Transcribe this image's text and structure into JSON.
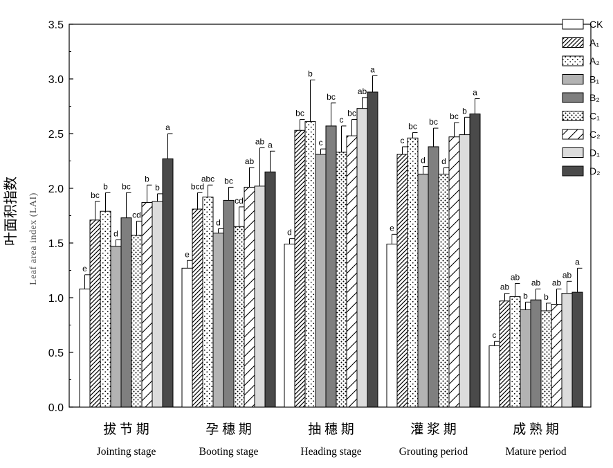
{
  "chart_data": {
    "type": "bar",
    "ylabel_cn": "叶面积指数",
    "ylabel_en": "Leaf area index (LAI)",
    "ylim": [
      0,
      3.5
    ],
    "yticks": [
      "0.0",
      "0.5",
      "1.0",
      "1.5",
      "2.0",
      "2.5",
      "3.0",
      "3.5"
    ],
    "ytick_values": [
      0,
      0.5,
      1.0,
      1.5,
      2.0,
      2.5,
      3.0,
      3.5
    ],
    "legend_position": "top-right",
    "series_info": [
      {
        "name": "CK",
        "pattern": "white"
      },
      {
        "name": "A₁",
        "pattern": "hatch"
      },
      {
        "name": "A₂",
        "pattern": "dots"
      },
      {
        "name": "B₁",
        "pattern": "lightgray"
      },
      {
        "name": "B₂",
        "pattern": "midgray"
      },
      {
        "name": "C₁",
        "pattern": "denseDots"
      },
      {
        "name": "C₂",
        "pattern": "slash"
      },
      {
        "name": "D₁",
        "pattern": "palegray"
      },
      {
        "name": "D₂",
        "pattern": "darkgray"
      }
    ],
    "groups": [
      {
        "label_cn": "拔 节 期",
        "label_en": "Jointing stage",
        "values": [
          1.08,
          1.71,
          1.79,
          1.47,
          1.73,
          1.57,
          1.87,
          1.88,
          2.27
        ],
        "errors": [
          0.13,
          0.17,
          0.17,
          0.06,
          0.23,
          0.13,
          0.16,
          0.07,
          0.23
        ],
        "letters": [
          "e",
          "bc",
          "b",
          "d",
          "bc",
          "cd",
          "b",
          "b",
          "a"
        ]
      },
      {
        "label_cn": "孕 穗 期",
        "label_en": "Booting stage",
        "values": [
          1.27,
          1.81,
          1.92,
          1.59,
          1.89,
          1.65,
          2.01,
          2.02,
          2.15
        ],
        "errors": [
          0.07,
          0.15,
          0.11,
          0.04,
          0.12,
          0.18,
          0.18,
          0.35,
          0.19
        ],
        "letters": [
          "e",
          "bcd",
          "abc",
          "d",
          "bc",
          "cd",
          "ab",
          "ab",
          "a"
        ]
      },
      {
        "label_cn": "抽 穗 期",
        "label_en": "Heading stage",
        "values": [
          1.49,
          2.53,
          2.61,
          2.31,
          2.57,
          2.33,
          2.48,
          2.73,
          2.88
        ],
        "errors": [
          0.05,
          0.1,
          0.38,
          0.05,
          0.21,
          0.24,
          0.15,
          0.1,
          0.15
        ],
        "letters": [
          "d",
          "bc",
          "b",
          "c",
          "bc",
          "c",
          "bc",
          "ab",
          "a"
        ]
      },
      {
        "label_cn": "灌 浆 期",
        "label_en": "Grouting period",
        "values": [
          1.49,
          2.31,
          2.46,
          2.13,
          2.38,
          2.13,
          2.47,
          2.49,
          2.68
        ],
        "errors": [
          0.09,
          0.07,
          0.05,
          0.07,
          0.17,
          0.06,
          0.13,
          0.16,
          0.14
        ],
        "letters": [
          "e",
          "c",
          "bc",
          "d",
          "bc",
          "d",
          "bc",
          "b",
          "a"
        ]
      },
      {
        "label_cn": "成 熟 期",
        "label_en": "Mature period",
        "values": [
          0.56,
          0.97,
          1.01,
          0.89,
          0.98,
          0.88,
          0.94,
          1.04,
          1.05
        ],
        "errors": [
          0.04,
          0.07,
          0.12,
          0.07,
          0.1,
          0.07,
          0.14,
          0.11,
          0.22
        ],
        "letters": [
          "c",
          "ab",
          "ab",
          "b",
          "ab",
          "b",
          "ab",
          "ab",
          "a"
        ]
      }
    ]
  }
}
